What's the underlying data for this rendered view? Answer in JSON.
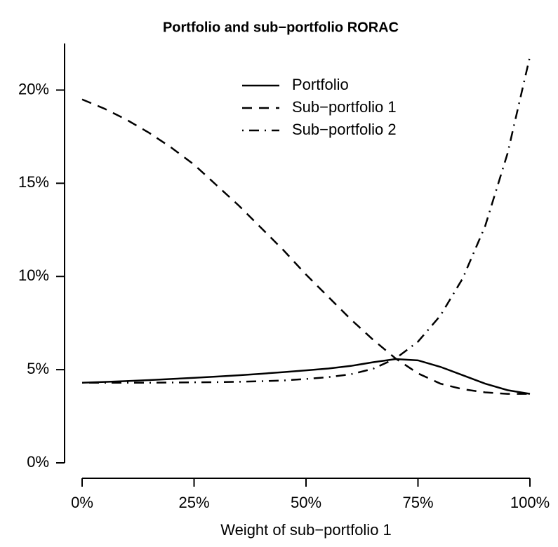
{
  "chart_data": {
    "type": "line",
    "title": "Portfolio and sub−portfolio RORAC",
    "x_label": "Weight of sub−portfolio 1",
    "x": [
      0,
      5,
      10,
      15,
      20,
      25,
      30,
      35,
      40,
      45,
      50,
      55,
      60,
      65,
      70,
      75,
      80,
      85,
      90,
      95,
      100
    ],
    "series": [
      {
        "name": "Portfolio",
        "color": "#000000",
        "dash": "solid",
        "values": [
          4.3,
          4.34,
          4.39,
          4.44,
          4.5,
          4.56,
          4.63,
          4.7,
          4.78,
          4.87,
          4.96,
          5.06,
          5.2,
          5.4,
          5.57,
          5.5,
          5.15,
          4.7,
          4.25,
          3.9,
          3.7
        ]
      },
      {
        "name": "Sub−portfolio 1",
        "color": "#000000",
        "dash": "dashed",
        "values": [
          19.5,
          19.0,
          18.4,
          17.7,
          16.9,
          16.0,
          14.9,
          13.8,
          12.6,
          11.4,
          10.1,
          8.9,
          7.7,
          6.6,
          5.6,
          4.8,
          4.25,
          3.95,
          3.78,
          3.7,
          3.7
        ]
      },
      {
        "name": "Sub−portfolio 2",
        "color": "#000000",
        "dash": "dotdash",
        "values": [
          4.3,
          4.3,
          4.3,
          4.3,
          4.31,
          4.32,
          4.33,
          4.35,
          4.38,
          4.42,
          4.5,
          4.6,
          4.75,
          5.05,
          5.6,
          6.5,
          7.9,
          9.9,
          12.7,
          16.6,
          21.8
        ]
      }
    ],
    "xlim": [
      0,
      100
    ],
    "xticks": [
      {
        "value": 0,
        "label": "0%"
      },
      {
        "value": 25,
        "label": "25%"
      },
      {
        "value": 50,
        "label": "50%"
      },
      {
        "value": 75,
        "label": "75%"
      },
      {
        "value": 100,
        "label": "100%"
      }
    ],
    "ylim": [
      0,
      22.5
    ],
    "yticks": [
      {
        "value": 0,
        "label": "0%"
      },
      {
        "value": 5,
        "label": "5%"
      },
      {
        "value": 10,
        "label": "10%"
      },
      {
        "value": 15,
        "label": "15%"
      },
      {
        "value": 20,
        "label": "20%"
      }
    ],
    "legend": "top"
  }
}
